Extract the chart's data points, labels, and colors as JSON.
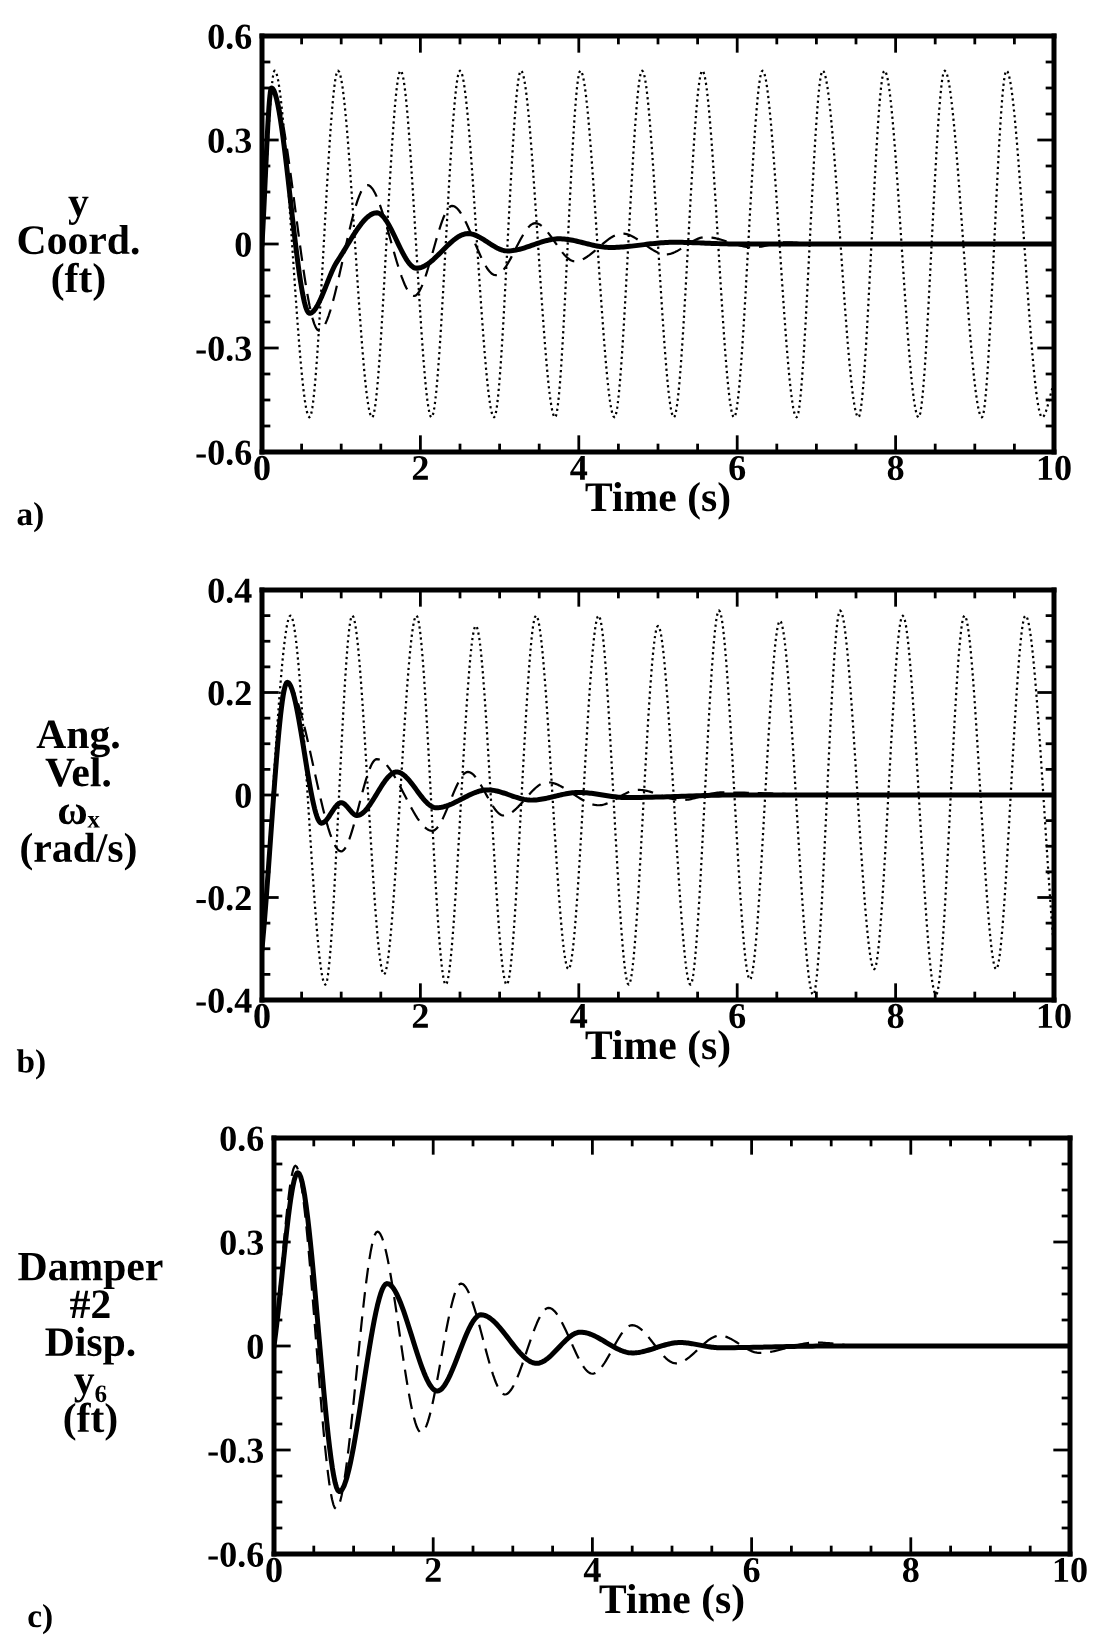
{
  "chart_data": [
    {
      "type": "line",
      "xlabel": "Time (s)",
      "ylabel": "y\nCoord.\n(ft)",
      "annotations": [
        "a)"
      ],
      "xlim": [
        0,
        10
      ],
      "ylim": [
        -0.6,
        0.6
      ],
      "xticks": [
        0,
        2,
        4,
        6,
        8,
        10
      ],
      "yticks": [
        -0.6,
        -0.3,
        0,
        0.3,
        0.6
      ],
      "grid": false,
      "legend": false,
      "series": [
        {
          "color": "#000000",
          "line_style": "dotted",
          "x": [
            0,
            0.16,
            0.6,
            0.96,
            1.39,
            1.75,
            2.14,
            2.5,
            2.93,
            3.27,
            3.7,
            4.02,
            4.45,
            4.8,
            5.2,
            5.56,
            5.96,
            6.32,
            6.75,
            7.08,
            7.53,
            7.86,
            8.29,
            8.62,
            9.09,
            9.4,
            9.85,
            10
          ],
          "values": [
            0,
            0.5,
            -0.5,
            0.5,
            -0.5,
            0.5,
            -0.5,
            0.5,
            -0.5,
            0.5,
            -0.5,
            0.5,
            -0.5,
            0.5,
            -0.5,
            0.5,
            -0.5,
            0.5,
            -0.5,
            0.5,
            -0.5,
            0.5,
            -0.5,
            0.5,
            -0.5,
            0.5,
            -0.5,
            -0.4
          ]
        },
        {
          "color": "#000000",
          "line_style": "dashed",
          "x": [
            0,
            0.12,
            0.72,
            1.33,
            1.92,
            2.4,
            2.95,
            3.45,
            3.95,
            4.55,
            5.1,
            5.6,
            6.2,
            6.6,
            7.0
          ],
          "values": [
            0,
            0.45,
            -0.25,
            0.17,
            -0.15,
            0.11,
            -0.09,
            0.06,
            -0.05,
            0.03,
            -0.03,
            0.02,
            -0.01,
            0.005,
            0
          ]
        },
        {
          "color": "#000000",
          "line_style": "solid",
          "x": [
            0,
            0.12,
            0.6,
            0.95,
            1.45,
            1.95,
            2.6,
            3.1,
            3.75,
            4.4,
            5.2,
            6.0,
            10
          ],
          "values": [
            0,
            0.45,
            -0.2,
            -0.05,
            0.09,
            -0.07,
            0.03,
            -0.02,
            0.015,
            -0.01,
            0.005,
            0,
            0
          ]
        }
      ]
    },
    {
      "type": "line",
      "xlabel": "Time (s)",
      "ylabel": "Ang.\nVel.\nωₓ\n(rad/s)",
      "annotations": [
        "b)"
      ],
      "xlim": [
        0,
        10
      ],
      "ylim": [
        -0.4,
        0.4
      ],
      "xticks": [
        0,
        2,
        4,
        6,
        8,
        10
      ],
      "yticks": [
        -0.4,
        -0.2,
        0,
        0.2,
        0.4
      ],
      "grid": false,
      "legend": false,
      "series": [
        {
          "color": "#000000",
          "line_style": "dotted",
          "x": [
            0,
            0.36,
            0.8,
            1.14,
            1.54,
            1.95,
            2.32,
            2.7,
            3.09,
            3.46,
            3.87,
            4.25,
            4.63,
            5.0,
            5.41,
            5.77,
            6.16,
            6.54,
            6.96,
            7.3,
            7.73,
            8.09,
            8.51,
            8.87,
            9.27,
            9.64,
            10
          ],
          "values": [
            -0.3,
            0.35,
            -0.37,
            0.35,
            -0.35,
            0.35,
            -0.37,
            0.33,
            -0.37,
            0.35,
            -0.34,
            0.35,
            -0.37,
            0.33,
            -0.37,
            0.36,
            -0.36,
            0.34,
            -0.39,
            0.36,
            -0.34,
            0.35,
            -0.39,
            0.35,
            -0.34,
            0.35,
            -0.3
          ]
        },
        {
          "color": "#000000",
          "line_style": "dashed",
          "x": [
            0,
            0.3,
            1.0,
            1.45,
            2.15,
            2.6,
            3.05,
            3.6,
            4.25,
            4.75,
            5.3,
            5.8,
            7.0
          ],
          "values": [
            -0.3,
            0.22,
            -0.11,
            0.07,
            -0.07,
            0.045,
            -0.04,
            0.025,
            -0.02,
            0.01,
            -0.01,
            0.005,
            0
          ]
        },
        {
          "color": "#000000",
          "line_style": "solid",
          "x": [
            0,
            0.32,
            0.75,
            1.0,
            1.2,
            1.7,
            2.2,
            2.85,
            3.4,
            4.0,
            4.6,
            6.0,
            10
          ],
          "values": [
            -0.3,
            0.22,
            -0.055,
            -0.015,
            -0.04,
            0.045,
            -0.025,
            0.01,
            -0.01,
            0.005,
            -0.005,
            0,
            0
          ]
        }
      ]
    },
    {
      "type": "line",
      "xlabel": "Time (s)",
      "ylabel": "Damper\n#2\nDisp.\ny₆\n(ft)",
      "annotations": [
        "c)"
      ],
      "xlim": [
        0,
        10
      ],
      "ylim": [
        -0.6,
        0.6
      ],
      "xticks": [
        0,
        2,
        4,
        6,
        8,
        10
      ],
      "yticks": [
        -0.6,
        -0.3,
        0,
        0.3,
        0.6
      ],
      "grid": false,
      "legend": false,
      "series": [
        {
          "color": "#000000",
          "line_style": "dashed",
          "x": [
            0,
            0.27,
            0.78,
            1.3,
            1.85,
            2.35,
            2.9,
            3.45,
            4.0,
            4.5,
            5.05,
            5.6,
            6.1,
            6.8,
            7.3
          ],
          "values": [
            0,
            0.52,
            -0.47,
            0.33,
            -0.25,
            0.18,
            -0.14,
            0.11,
            -0.08,
            0.06,
            -0.05,
            0.03,
            -0.02,
            0.01,
            0
          ]
        },
        {
          "color": "#000000",
          "line_style": "solid",
          "x": [
            0,
            0.3,
            0.82,
            1.42,
            2.05,
            2.6,
            3.3,
            3.85,
            4.5,
            5.1,
            5.6,
            7.0,
            10
          ],
          "values": [
            0,
            0.5,
            -0.42,
            0.18,
            -0.13,
            0.09,
            -0.05,
            0.04,
            -0.02,
            0.01,
            -0.005,
            0,
            0
          ]
        }
      ]
    }
  ]
}
